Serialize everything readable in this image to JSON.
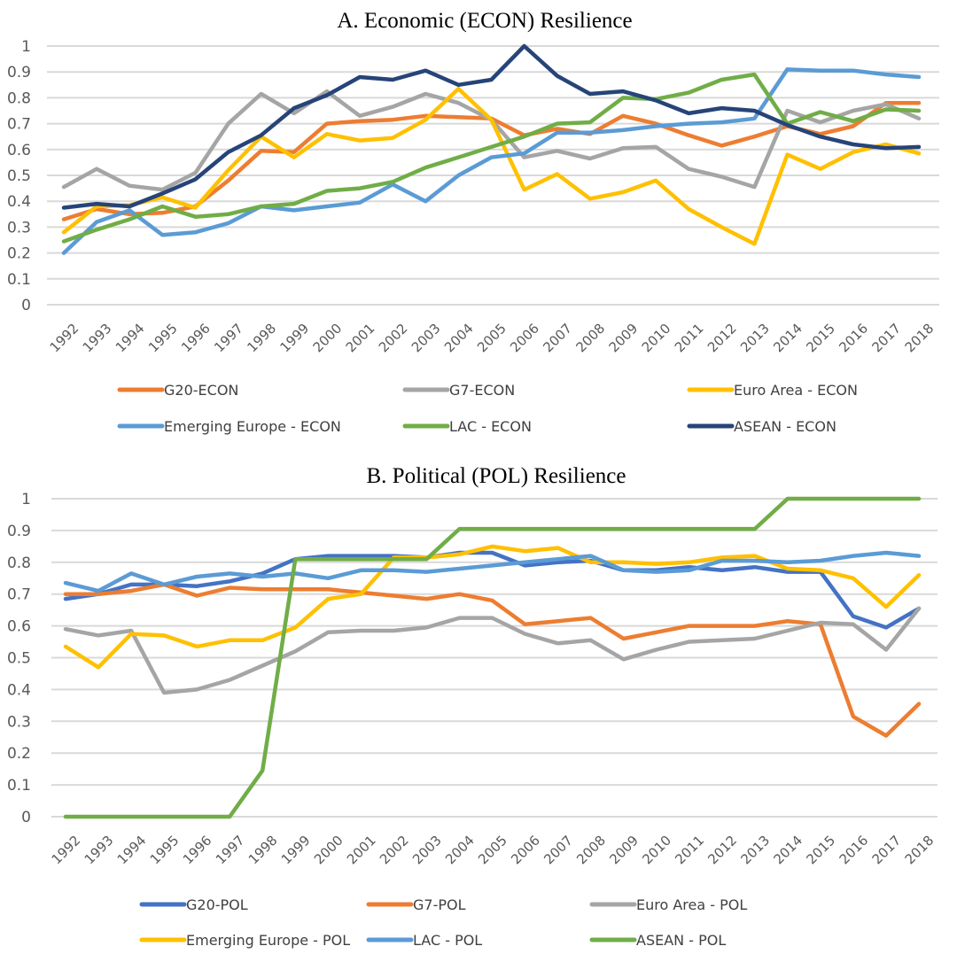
{
  "chart_data": [
    {
      "type": "line",
      "title": "A.  Economic (ECON) Resilience",
      "xlabel": "",
      "ylabel": "",
      "ylim": [
        0,
        1
      ],
      "yticks": [
        "0",
        "0.1",
        "0.2",
        "0.3",
        "0.4",
        "0.5",
        "0.6",
        "0.7",
        "0.8",
        "0.9",
        "1"
      ],
      "grid": true,
      "legend": "bottom",
      "x": [
        "1992",
        "1993",
        "1994",
        "1995",
        "1996",
        "1997",
        "1998",
        "1999",
        "2000",
        "2001",
        "2002",
        "2003",
        "2004",
        "2005",
        "2006",
        "2007",
        "2008",
        "2009",
        "2010",
        "2011",
        "2012",
        "2013",
        "2014",
        "2015",
        "2016",
        "2017",
        "2018"
      ],
      "series": [
        {
          "name": "G20-ECON",
          "color": "#ED7D31",
          "values": [
            0.33,
            0.37,
            0.35,
            0.355,
            0.38,
            0.48,
            0.595,
            0.59,
            0.7,
            0.71,
            0.715,
            0.73,
            0.725,
            0.72,
            0.655,
            0.68,
            0.66,
            0.73,
            0.7,
            0.655,
            0.615,
            0.65,
            0.69,
            0.66,
            0.69,
            0.78,
            0.78
          ]
        },
        {
          "name": "G7-ECON",
          "color": "#A5A5A5",
          "values": [
            0.455,
            0.525,
            0.46,
            0.445,
            0.51,
            0.7,
            0.815,
            0.74,
            0.825,
            0.73,
            0.765,
            0.815,
            0.78,
            0.715,
            0.57,
            0.595,
            0.565,
            0.605,
            0.61,
            0.525,
            0.495,
            0.455,
            0.75,
            0.705,
            0.75,
            0.775,
            0.72
          ]
        },
        {
          "name": "Euro Area - ECON",
          "color": "#FFC000",
          "values": [
            0.28,
            0.38,
            0.385,
            0.415,
            0.375,
            0.52,
            0.65,
            0.57,
            0.66,
            0.635,
            0.645,
            0.715,
            0.835,
            0.715,
            0.445,
            0.505,
            0.41,
            0.435,
            0.48,
            0.37,
            0.3,
            0.235,
            0.58,
            0.525,
            0.59,
            0.62,
            0.585
          ]
        },
        {
          "name": "Emerging Europe - ECON",
          "color": "#5B9BD5",
          "values": [
            0.2,
            0.32,
            0.365,
            0.27,
            0.28,
            0.315,
            0.38,
            0.365,
            0.38,
            0.395,
            0.465,
            0.4,
            0.5,
            0.57,
            0.585,
            0.665,
            0.665,
            0.675,
            0.69,
            0.7,
            0.705,
            0.72,
            0.91,
            0.905,
            0.905,
            0.89,
            0.88
          ]
        },
        {
          "name": "LAC - ECON",
          "color": "#70AD47",
          "values": [
            0.245,
            0.29,
            0.33,
            0.38,
            0.34,
            0.35,
            0.38,
            0.39,
            0.44,
            0.45,
            0.475,
            0.53,
            0.57,
            0.61,
            0.65,
            0.7,
            0.705,
            0.8,
            0.795,
            0.82,
            0.87,
            0.89,
            0.7,
            0.745,
            0.71,
            0.755,
            0.75
          ]
        },
        {
          "name": "ASEAN - ECON",
          "color": "#264478",
          "values": [
            0.375,
            0.39,
            0.38,
            0.43,
            0.485,
            0.59,
            0.655,
            0.76,
            0.81,
            0.88,
            0.87,
            0.905,
            0.85,
            0.87,
            1.0,
            0.885,
            0.815,
            0.825,
            0.79,
            0.74,
            0.76,
            0.75,
            0.695,
            0.65,
            0.62,
            0.605,
            0.61
          ]
        }
      ]
    },
    {
      "type": "line",
      "title": "B.  Political (POL) Resilience",
      "xlabel": "",
      "ylabel": "",
      "ylim": [
        0,
        1
      ],
      "yticks": [
        "0",
        "0.1",
        "0.2",
        "0.3",
        "0.4",
        "0.5",
        "0.6",
        "0.7",
        "0.8",
        "0.9",
        "1"
      ],
      "grid": true,
      "legend": "bottom",
      "x": [
        "1992",
        "1993",
        "1994",
        "1995",
        "1996",
        "1997",
        "1998",
        "1999",
        "2000",
        "2001",
        "2002",
        "2003",
        "2004",
        "2005",
        "2006",
        "2007",
        "2008",
        "2009",
        "2010",
        "2011",
        "2012",
        "2013",
        "2014",
        "2015",
        "2016",
        "2017",
        "2018"
      ],
      "series": [
        {
          "name": "G20-POL",
          "color": "#4472C4",
          "values": [
            0.685,
            0.7,
            0.73,
            0.73,
            0.725,
            0.74,
            0.765,
            0.81,
            0.82,
            0.82,
            0.82,
            0.815,
            0.83,
            0.83,
            0.79,
            0.8,
            0.805,
            0.775,
            0.775,
            0.785,
            0.775,
            0.785,
            0.77,
            0.77,
            0.63,
            0.595,
            0.655
          ]
        },
        {
          "name": "G7-POL",
          "color": "#ED7D31",
          "values": [
            0.7,
            0.7,
            0.71,
            0.73,
            0.695,
            0.72,
            0.715,
            0.715,
            0.715,
            0.705,
            0.695,
            0.685,
            0.7,
            0.68,
            0.605,
            0.615,
            0.625,
            0.56,
            0.58,
            0.6,
            0.6,
            0.6,
            0.615,
            0.605,
            0.315,
            0.255,
            0.355
          ]
        },
        {
          "name": "Euro Area - POL",
          "color": "#A5A5A5",
          "values": [
            0.59,
            0.57,
            0.585,
            0.39,
            0.4,
            0.43,
            0.475,
            0.52,
            0.58,
            0.585,
            0.585,
            0.595,
            0.625,
            0.625,
            0.575,
            0.545,
            0.555,
            0.495,
            0.525,
            0.55,
            0.555,
            0.56,
            0.585,
            0.61,
            0.605,
            0.525,
            0.655
          ]
        },
        {
          "name": "Emerging Europe - POL",
          "color": "#FFC000",
          "values": [
            0.535,
            0.47,
            0.575,
            0.57,
            0.535,
            0.555,
            0.555,
            0.595,
            0.685,
            0.7,
            0.815,
            0.815,
            0.825,
            0.85,
            0.835,
            0.845,
            0.8,
            0.8,
            0.795,
            0.8,
            0.815,
            0.82,
            0.78,
            0.775,
            0.75,
            0.66,
            0.76
          ]
        },
        {
          "name": "LAC - POL",
          "color": "#5B9BD5",
          "values": [
            0.735,
            0.71,
            0.765,
            0.73,
            0.755,
            0.765,
            0.755,
            0.765,
            0.75,
            0.775,
            0.775,
            0.77,
            0.78,
            0.79,
            0.8,
            0.81,
            0.82,
            0.775,
            0.77,
            0.775,
            0.805,
            0.805,
            0.8,
            0.805,
            0.82,
            0.83,
            0.82
          ]
        },
        {
          "name": "ASEAN - POL",
          "color": "#70AD47",
          "values": [
            0.0,
            0.0,
            0.0,
            0.0,
            0.0,
            0.0,
            0.145,
            0.81,
            0.81,
            0.81,
            0.81,
            0.81,
            0.905,
            0.905,
            0.905,
            0.905,
            0.905,
            0.905,
            0.905,
            0.905,
            0.905,
            0.905,
            1.0,
            1.0,
            1.0,
            1.0,
            1.0
          ]
        }
      ]
    }
  ]
}
